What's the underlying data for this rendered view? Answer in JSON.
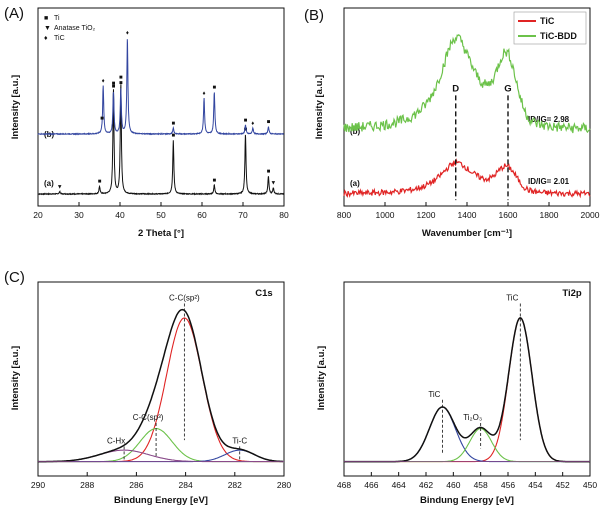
{
  "panels": {
    "A": "(A)",
    "B": "(B)",
    "C": "(C)"
  },
  "chart_data": [
    {
      "id": "xrd",
      "type": "line",
      "xlabel": "2 Theta [°]",
      "ylabel": "Intensity [a.u.]",
      "xlim": [
        20,
        80
      ],
      "xticks": [
        20,
        30,
        40,
        50,
        60,
        70,
        80
      ],
      "legend": [
        {
          "symbol": "■",
          "label": "Ti"
        },
        {
          "symbol": "▼",
          "label": "Anatase TiO₂"
        },
        {
          "symbol": "♦",
          "label": "TiC"
        }
      ],
      "series": [
        {
          "name": "(a)",
          "color": "#111111",
          "baseline": 0,
          "peaks": [
            [
              25.3,
              0.8
            ],
            [
              35,
              2.5
            ],
            [
              38.4,
              35
            ],
            [
              40.2,
              37
            ],
            [
              53,
              18
            ],
            [
              63,
              3
            ],
            [
              70.6,
              20
            ],
            [
              76.2,
              6
            ],
            [
              77.4,
              2
            ]
          ],
          "markers": [
            {
              "x": 25.3,
              "sym": "▼"
            },
            {
              "x": 35,
              "sym": "■"
            },
            {
              "x": 38.4,
              "sym": "■"
            },
            {
              "x": 40.2,
              "sym": "■"
            },
            {
              "x": 53,
              "sym": "■"
            },
            {
              "x": 63,
              "sym": "■"
            },
            {
              "x": 70.6,
              "sym": "■"
            },
            {
              "x": 76.2,
              "sym": "■"
            },
            {
              "x": 77.4,
              "sym": "▼"
            }
          ]
        },
        {
          "name": "(b)",
          "color": "#3346a0",
          "baseline": 20,
          "peaks": [
            [
              35.9,
              16
            ],
            [
              38.4,
              14
            ],
            [
              40.2,
              15
            ],
            [
              41.8,
              32
            ],
            [
              53,
              2
            ],
            [
              60.5,
              12
            ],
            [
              63,
              14
            ],
            [
              70.6,
              3
            ],
            [
              72.4,
              2
            ],
            [
              76.2,
              2.5
            ]
          ],
          "markers": [
            {
              "x": 35.6,
              "sym": "■"
            },
            {
              "x": 35.9,
              "sym": "♦"
            },
            {
              "x": 38.4,
              "sym": "■"
            },
            {
              "x": 40.2,
              "sym": "■"
            },
            {
              "x": 41.8,
              "sym": "♦"
            },
            {
              "x": 53,
              "sym": "■"
            },
            {
              "x": 60.5,
              "sym": "♦"
            },
            {
              "x": 63,
              "sym": "■"
            },
            {
              "x": 70.6,
              "sym": "■"
            },
            {
              "x": 72.4,
              "sym": "♦"
            },
            {
              "x": 76.2,
              "sym": "■"
            }
          ]
        }
      ],
      "ylim": [
        -4,
        62
      ]
    },
    {
      "id": "raman",
      "type": "line",
      "xlabel": "Wavenumber [cm⁻¹]",
      "ylabel": "Intensity [a.u.]",
      "xlim": [
        800,
        2000
      ],
      "xticks": [
        800,
        1000,
        1200,
        1400,
        1600,
        1800,
        2000
      ],
      "series": [
        {
          "name": "TiC",
          "color": "#e02424",
          "baseline": 0,
          "D": [
            1345,
            4.8
          ],
          "G": [
            1595,
            4.8
          ],
          "label": "(a)",
          "ratio": "ID/IG= 2.01"
        },
        {
          "name": "TiC-BDD",
          "color": "#6cc24a",
          "baseline": 11,
          "D": [
            1345,
            14
          ],
          "G": [
            1595,
            13
          ],
          "label": "(b)",
          "ratio": "ID/IG= 2.98"
        }
      ],
      "bands": {
        "D": "D",
        "G": "G",
        "D_x": 1345,
        "G_x": 1600
      },
      "ylim": [
        -2,
        32
      ]
    },
    {
      "id": "c1s",
      "type": "line",
      "title": "C1s",
      "xlabel": "Bindung Energy [eV]",
      "ylabel": "Intensity [a.u.]",
      "xlim": [
        290,
        280
      ],
      "xticks": [
        290,
        288,
        286,
        284,
        282,
        280
      ],
      "components": [
        {
          "name": "C-C(sp²)",
          "center": 284.05,
          "amp": 100,
          "width": 0.72,
          "color": "#e02424"
        },
        {
          "name": "C-C(sp³)",
          "center": 285.2,
          "amp": 23,
          "width": 0.65,
          "color": "#6cc24a"
        },
        {
          "name": "C-Hx",
          "center": 286.5,
          "amp": 8,
          "width": 1.0,
          "color": "#8a4a8a"
        },
        {
          "name": "Ti-C",
          "center": 281.8,
          "amp": 8,
          "width": 0.6,
          "color": "#3346a0"
        }
      ],
      "ylim": [
        -10,
        125
      ]
    },
    {
      "id": "ti2p",
      "type": "line",
      "title": "Ti2p",
      "xlabel": "Bindung Energy [eV]",
      "ylabel": "Intensity [a.u.]",
      "xlim": [
        468,
        450
      ],
      "xticks": [
        468,
        466,
        464,
        462,
        460,
        458,
        456,
        454,
        452,
        450
      ],
      "components": [
        {
          "name": "TiC",
          "center": 455.1,
          "amp": 100,
          "width": 0.85,
          "color": "#e02424"
        },
        {
          "name": "TiC",
          "center": 460.8,
          "amp": 38,
          "width": 0.95,
          "color": "#3346a0"
        },
        {
          "name": "Ti₂O₃",
          "center": 458.0,
          "amp": 23,
          "width": 0.8,
          "color": "#6cc24a"
        }
      ],
      "ylim": [
        -10,
        125
      ]
    }
  ]
}
